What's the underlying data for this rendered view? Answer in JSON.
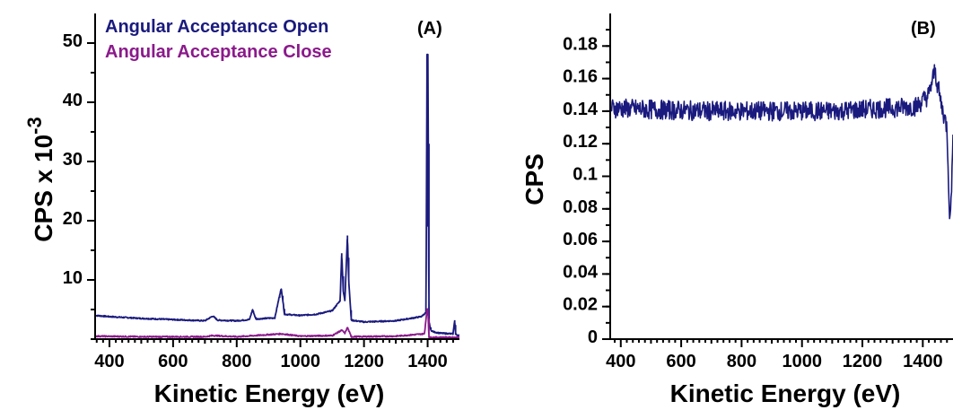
{
  "chart_data": [
    {
      "type": "line",
      "panel_label": "(A)",
      "xlabel": "Kinetic Energy (eV)",
      "ylabel": "CPS x 10",
      "ylabel_exponent": "-3",
      "xlim": [
        355,
        1500
      ],
      "ylim": [
        0,
        55
      ],
      "x_ticks": [
        "400",
        "600",
        "800",
        "1000",
        "1200",
        "1400"
      ],
      "y_ticks": [
        "10",
        "20",
        "30",
        "40",
        "50"
      ],
      "legend_placement": "top-left",
      "series": [
        {
          "name": "Angular Acceptance Open",
          "color": "#1a1a7e",
          "points": [
            [
              355,
              4.0
            ],
            [
              400,
              3.8
            ],
            [
              500,
              3.5
            ],
            [
              600,
              3.3
            ],
            [
              700,
              3.1
            ],
            [
              725,
              3.9
            ],
            [
              740,
              3.2
            ],
            [
              800,
              3.1
            ],
            [
              840,
              3.3
            ],
            [
              850,
              5.0
            ],
            [
              860,
              3.4
            ],
            [
              920,
              3.6
            ],
            [
              935,
              7.5
            ],
            [
              940,
              8.5
            ],
            [
              945,
              6.5
            ],
            [
              950,
              4.2
            ],
            [
              1000,
              4.0
            ],
            [
              1050,
              4.2
            ],
            [
              1100,
              4.8
            ],
            [
              1125,
              6.5
            ],
            [
              1130,
              14.5
            ],
            [
              1135,
              8.0
            ],
            [
              1140,
              6.5
            ],
            [
              1148,
              17.5
            ],
            [
              1152,
              10.0
            ],
            [
              1160,
              3.2
            ],
            [
              1200,
              2.9
            ],
            [
              1300,
              3.1
            ],
            [
              1380,
              3.8
            ],
            [
              1395,
              4.5
            ],
            [
              1398,
              48.0
            ],
            [
              1401,
              48.0
            ],
            [
              1404,
              3.0
            ],
            [
              1410,
              1.5
            ],
            [
              1420,
              1.2
            ],
            [
              1440,
              1.0
            ],
            [
              1480,
              0.9
            ],
            [
              1485,
              3.2
            ],
            [
              1488,
              0.8
            ],
            [
              1500,
              0.6
            ]
          ]
        },
        {
          "name": "Angular Acceptance Close",
          "color": "#8b1a8b",
          "points": [
            [
              355,
              0.5
            ],
            [
              500,
              0.4
            ],
            [
              700,
              0.4
            ],
            [
              725,
              0.6
            ],
            [
              800,
              0.4
            ],
            [
              940,
              0.9
            ],
            [
              1000,
              0.5
            ],
            [
              1100,
              0.6
            ],
            [
              1130,
              1.5
            ],
            [
              1140,
              1.0
            ],
            [
              1148,
              2.0
            ],
            [
              1160,
              0.4
            ],
            [
              1300,
              0.5
            ],
            [
              1390,
              0.9
            ],
            [
              1398,
              5.0
            ],
            [
              1401,
              5.0
            ],
            [
              1404,
              0.3
            ],
            [
              1500,
              0.3
            ]
          ]
        }
      ]
    },
    {
      "type": "line",
      "panel_label": "(B)",
      "xlabel": "Kinetic Energy (eV)",
      "ylabel": "CPS",
      "xlim": [
        365,
        1500
      ],
      "ylim": [
        0,
        0.2
      ],
      "x_ticks": [
        "400",
        "600",
        "800",
        "1000",
        "1200",
        "1400"
      ],
      "y_ticks": [
        "0",
        "0.02",
        "0.04",
        "0.06",
        "0.08",
        "0.1",
        "0.12",
        "0.14",
        "0.16",
        "0.18"
      ],
      "series": [
        {
          "color": "#1a1a7e",
          "baseline": 0.141,
          "noise_amplitude": 0.006,
          "points": [
            [
              365,
              0.142
            ],
            [
              500,
              0.141
            ],
            [
              700,
              0.14
            ],
            [
              900,
              0.14
            ],
            [
              1100,
              0.14
            ],
            [
              1200,
              0.141
            ],
            [
              1300,
              0.142
            ],
            [
              1380,
              0.143
            ],
            [
              1420,
              0.15
            ],
            [
              1440,
              0.165
            ],
            [
              1460,
              0.145
            ],
            [
              1480,
              0.13
            ],
            [
              1490,
              0.07
            ],
            [
              1500,
              0.12
            ]
          ]
        }
      ]
    }
  ]
}
